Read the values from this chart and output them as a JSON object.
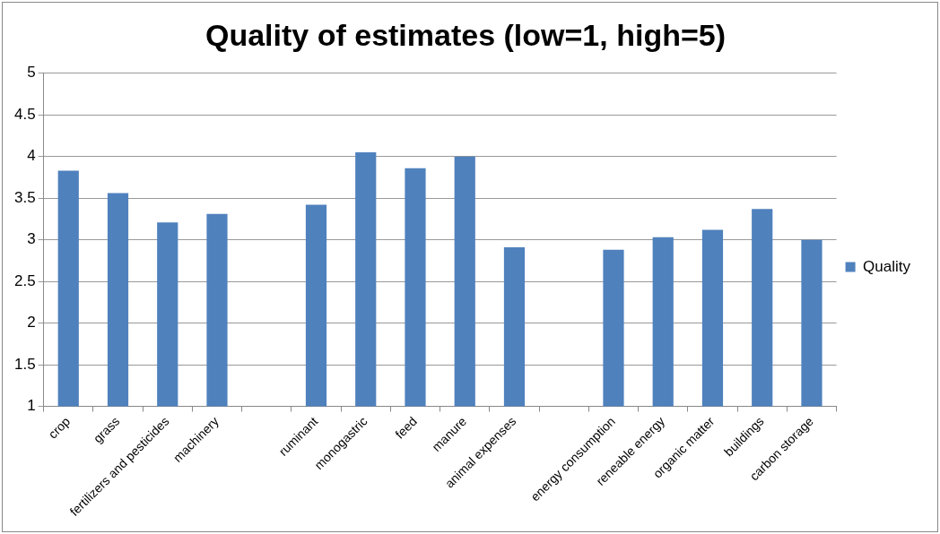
{
  "chart_data": {
    "type": "bar",
    "title": "Quality of estimates (low=1, high=5)",
    "categories": [
      "crop",
      "grass",
      "fertilizers and pesticides",
      "machinery",
      null,
      "ruminant",
      "monogastric",
      "feed",
      "manure",
      "animal expenses",
      null,
      "energy consumption",
      "reneable energy",
      "organic matter",
      "buildings",
      "carbon storage"
    ],
    "series": [
      {
        "name": "Quality",
        "color": "#4f81bd",
        "values": [
          3.83,
          3.56,
          3.21,
          3.31,
          null,
          3.42,
          4.05,
          3.86,
          4.0,
          2.91,
          null,
          2.88,
          3.03,
          3.12,
          3.37,
          3.0
        ]
      }
    ],
    "ylim": [
      1,
      5
    ],
    "yticks": [
      1,
      1.5,
      2,
      2.5,
      3,
      3.5,
      4,
      4.5,
      5
    ],
    "grid": "y",
    "legend": "right"
  }
}
